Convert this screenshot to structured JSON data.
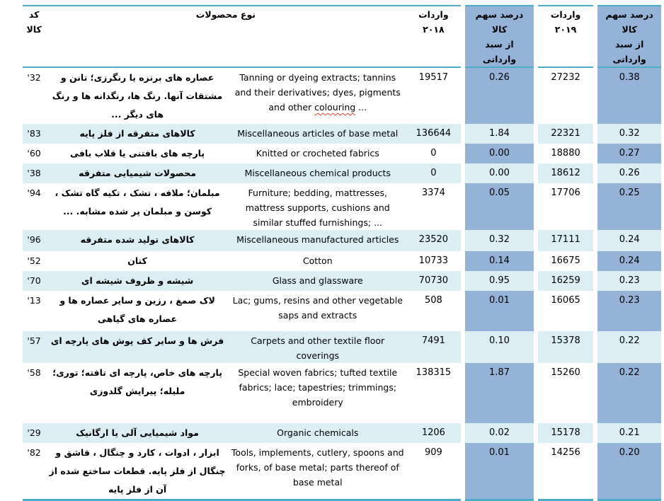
{
  "header": {
    "code_l1": "کد",
    "code_l2": "کالا",
    "products": "نوع محصولات",
    "imports": "واردات",
    "year_2018": "۲۰۱۸",
    "year_2019": "۲۰۱۹",
    "share_l1": "درصد سهم کالا",
    "share_l2": "از سبد وارداتی"
  },
  "colors": {
    "share_column_blue": "#95B3D7",
    "row_stripe_cyan": "#DAEEF3",
    "border_teal": "#4BACC6",
    "spellcheck_red": "#E03C31"
  },
  "rows": [
    {
      "code": "'32",
      "desc_fa": "عصاره های برنزه یا رنگرزی؛ تانن و مشتقات آنها. رنگ ها، رنگدانه ها و رنگ های دیگر ...",
      "desc_en_pre": "Tanning or dyeing extracts; tannins and their derivatives; dyes, pigments and other ",
      "desc_en_word": "colouring",
      "desc_en_post": " ...",
      "imp2018": "19517",
      "share2018": "0.26",
      "imp2019": "27232",
      "share2019": "0.38"
    },
    {
      "code": "'83",
      "desc_fa": "کالاهای متفرقه از فلز پایه",
      "desc_en": "Miscellaneous articles of base metal",
      "imp2018": "136644",
      "share2018": "1.84",
      "imp2019": "22321",
      "share2019": "0.32"
    },
    {
      "code": "'60",
      "desc_fa": "پارچه های بافتنی یا قلاب بافی",
      "desc_en": "Knitted or crocheted fabrics",
      "imp2018": "0",
      "share2018": "0.00",
      "imp2019": "18880",
      "share2019": "0.27"
    },
    {
      "code": "'38",
      "desc_fa": "محصولات شیمیایی متفرقه",
      "desc_en": "Miscellaneous chemical products",
      "imp2018": "0",
      "share2018": "0.00",
      "imp2019": "18612",
      "share2019": "0.26"
    },
    {
      "code": "'94",
      "desc_fa": "مبلمان؛ ملافه ، تشک ، تکیه گاه تشک ، کوسن و مبلمان پر شده مشابه. ...",
      "desc_en": "Furniture; bedding, mattresses, mattress supports, cushions and similar stuffed furnishings; ...",
      "imp2018": "3374",
      "share2018": "0.05",
      "imp2019": "17706",
      "share2019": "0.25"
    },
    {
      "code": "'96",
      "desc_fa": "کالاهای تولید شده متفرقه",
      "desc_en": "Miscellaneous manufactured articles",
      "imp2018": "23520",
      "share2018": "0.32",
      "imp2019": "17111",
      "share2019": "0.24"
    },
    {
      "code": "'52",
      "desc_fa": "کتان",
      "desc_en": "Cotton",
      "imp2018": "10733",
      "share2018": "0.14",
      "imp2019": "16675",
      "share2019": "0.24"
    },
    {
      "code": "'70",
      "desc_fa": "شیشه و ظروف شیشه ای",
      "desc_en": "Glass and glassware",
      "imp2018": "70730",
      "share2018": "0.95",
      "imp2019": "16259",
      "share2019": "0.23"
    },
    {
      "code": "'13",
      "desc_fa": "لاک صمغ ، رزین و سایر عصاره ها و عصاره های گیاهی",
      "desc_en": "Lac; gums, resins and other vegetable saps and extracts",
      "imp2018": "508",
      "share2018": "0.01",
      "imp2019": "16065",
      "share2019": "0.23"
    },
    {
      "code": "'57",
      "desc_fa": "فرش ها و سایر کف پوش های پارچه ای",
      "desc_en": "Carpets and other textile floor coverings",
      "imp2018": "7491",
      "share2018": "0.10",
      "imp2019": "15378",
      "share2019": "0.22"
    },
    {
      "code": "'58",
      "desc_fa": "پارچه های خاص، پارچه ای تافته؛ توری؛ ملیله؛ پیرایش گلدوزی",
      "desc_en": "Special woven fabrics; tufted textile fabrics; lace; tapestries; trimmings; embroidery",
      "imp2018": "138315",
      "share2018": "1.87",
      "imp2019": "15260",
      "share2019": "0.22"
    },
    {
      "code": "'29",
      "desc_fa": "مواد شیمیایی آلی یا ارگانیک",
      "desc_en": "Organic chemicals",
      "imp2018": "1206",
      "share2018": "0.02",
      "imp2019": "15178",
      "share2019": "0.21"
    },
    {
      "code": "'82",
      "desc_fa": "ابزار ، ادوات ، کارد و چنگال ، قاشق و چنگال از فلز پایه. قطعات ساختع شده از آن از فلز پایه",
      "desc_en": "Tools, implements, cutlery, spoons and forks, of base metal; parts thereof of base metal",
      "imp2018": "909",
      "share2018": "0.01",
      "imp2019": "14256",
      "share2019": "0.20"
    }
  ]
}
